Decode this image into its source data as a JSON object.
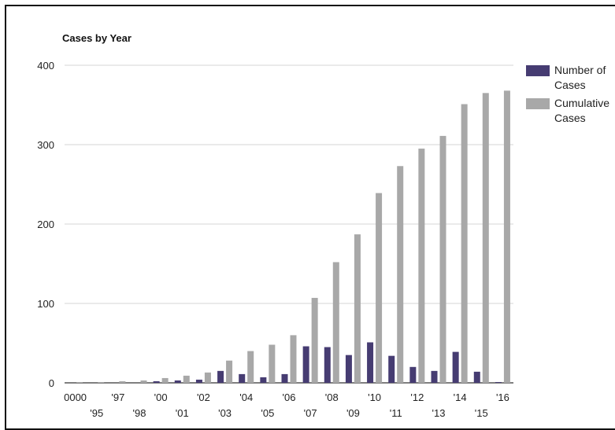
{
  "chart_data": {
    "type": "bar",
    "title": "Cases by Year",
    "xlabel": "",
    "ylabel": "",
    "ylim": [
      0,
      400
    ],
    "yticks": [
      0,
      100,
      200,
      300,
      400
    ],
    "grid": true,
    "legend_position": "right",
    "categories": [
      "0000",
      "'95",
      "'97",
      "'98",
      "'00",
      "'01",
      "'02",
      "'03",
      "'04",
      "'05",
      "'06",
      "'07",
      "'08",
      "'09",
      "'10",
      "'11",
      "'12",
      "'13",
      "'14",
      "'15",
      "'16"
    ],
    "series": [
      {
        "name": "Number of Cases",
        "color": "#463c72",
        "values": [
          0,
          0,
          0,
          0,
          2,
          3,
          4,
          15,
          11,
          7,
          11,
          46,
          45,
          35,
          51,
          34,
          20,
          15,
          39,
          14,
          1
        ]
      },
      {
        "name": "Cumulative Cases",
        "color": "#a8a8a8",
        "values": [
          1,
          1,
          2,
          3,
          6,
          9,
          13,
          28,
          40,
          48,
          60,
          107,
          152,
          187,
          239,
          273,
          295,
          311,
          351,
          365,
          368
        ]
      }
    ]
  },
  "legend": {
    "number_label_line1": "Number of",
    "number_label_line2": "Cases",
    "cumulative_label_line1": "Cumulative",
    "cumulative_label_line2": "Cases"
  }
}
